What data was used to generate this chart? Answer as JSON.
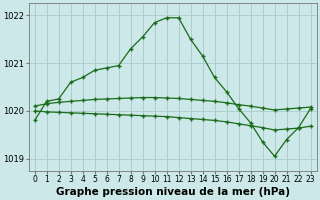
{
  "title": "Graphe pression niveau de la mer (hPa)",
  "x_labels": [
    "0",
    "1",
    "2",
    "3",
    "4",
    "5",
    "6",
    "7",
    "8",
    "9",
    "10",
    "11",
    "12",
    "13",
    "14",
    "15",
    "16",
    "17",
    "18",
    "19",
    "20",
    "21",
    "22",
    "23"
  ],
  "hours": [
    0,
    1,
    2,
    3,
    4,
    5,
    6,
    7,
    8,
    9,
    10,
    11,
    12,
    13,
    14,
    15,
    16,
    17,
    18,
    19,
    20,
    21,
    22,
    23
  ],
  "line1": [
    1019.8,
    1020.2,
    1020.25,
    1020.6,
    1020.7,
    1020.85,
    1020.9,
    1020.95,
    1021.3,
    1021.55,
    1021.85,
    1021.95,
    1021.95,
    1021.5,
    1021.15,
    1020.7,
    1020.4,
    1020.05,
    1019.75,
    1019.35,
    1019.05,
    1019.4,
    1019.65,
    1020.05
  ],
  "line2": [
    1020.1,
    1020.15,
    1020.18,
    1020.2,
    1020.22,
    1020.24,
    1020.25,
    1020.26,
    1020.27,
    1020.28,
    1020.28,
    1020.27,
    1020.26,
    1020.24,
    1020.22,
    1020.2,
    1020.17,
    1020.13,
    1020.1,
    1020.06,
    1020.02,
    1020.04,
    1020.06,
    1020.08
  ],
  "line3": [
    1020.0,
    1019.98,
    1019.97,
    1019.96,
    1019.95,
    1019.94,
    1019.93,
    1019.92,
    1019.91,
    1019.9,
    1019.89,
    1019.88,
    1019.86,
    1019.84,
    1019.82,
    1019.8,
    1019.77,
    1019.73,
    1019.69,
    1019.65,
    1019.6,
    1019.62,
    1019.64,
    1019.68
  ],
  "line_color": "#1a6b1a",
  "bg_color": "#cce8e8",
  "grid_color": "#aacccc",
  "ylim": [
    1018.75,
    1022.25
  ],
  "yticks": [
    1019,
    1020,
    1021,
    1022
  ],
  "title_fontsize": 7.5,
  "tick_fontsize": 6.0
}
